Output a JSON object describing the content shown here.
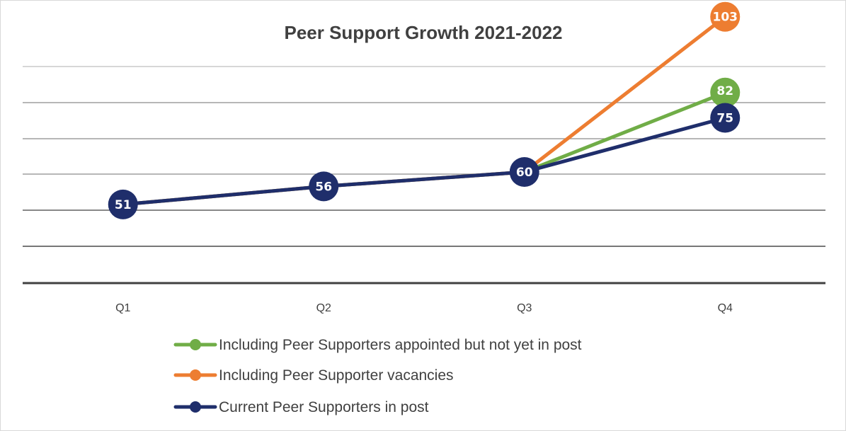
{
  "chart_data": {
    "type": "line",
    "title": "Peer Support Growth 2021-2022",
    "categories": [
      "Q1",
      "Q2",
      "Q3",
      "Q4"
    ],
    "ylim": [
      30,
      115
    ],
    "grid": true,
    "legend_position": "bottom",
    "series": [
      {
        "name": "Including Peer Supporters appointed but not yet in post",
        "color": "#70ad47",
        "values": [
          51,
          56,
          60,
          82
        ]
      },
      {
        "name": "Including Peer Supporter vacancies",
        "color": "#ed7d31",
        "values": [
          51,
          56,
          60,
          103
        ]
      },
      {
        "name": "Current Peer Supporters in post",
        "color": "#1f2e6b",
        "values": [
          51,
          56,
          60,
          75
        ]
      }
    ]
  }
}
